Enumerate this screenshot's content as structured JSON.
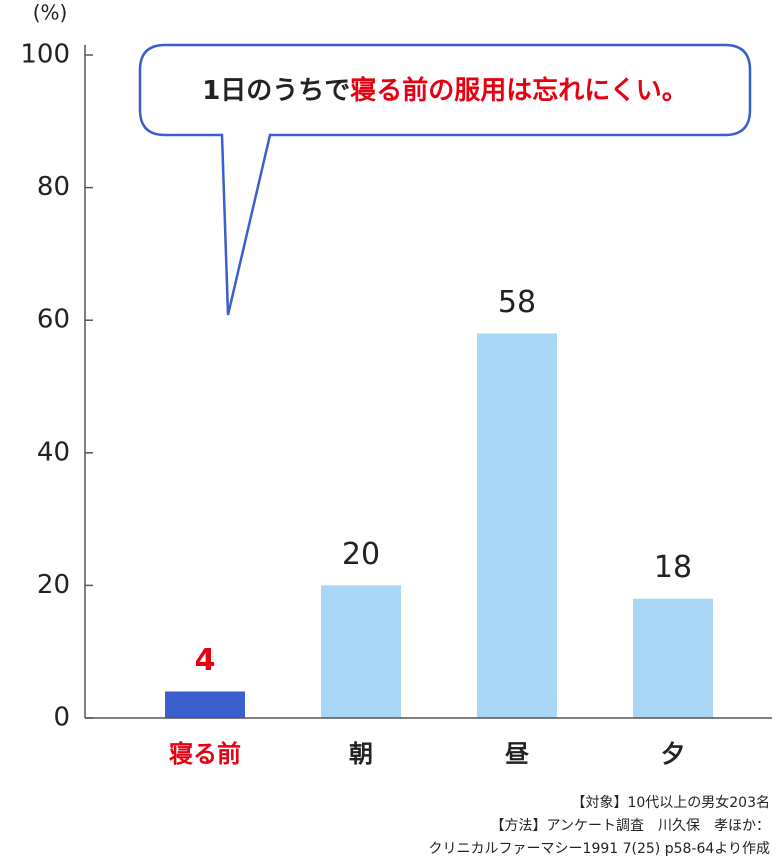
{
  "chart_data": {
    "type": "bar",
    "y_label": "(%)",
    "categories": [
      "寝る前",
      "朝",
      "昼",
      "夕"
    ],
    "values": [
      4,
      20,
      58,
      18
    ],
    "colors": [
      "#3a5fcd",
      "#a8d8f5",
      "#a8d8f5",
      "#a8d8f5"
    ],
    "label_colors": [
      "#e60012",
      "#222222",
      "#222222",
      "#222222"
    ],
    "ylim": [
      0,
      100
    ],
    "yticks": [
      0,
      20,
      40,
      60,
      80,
      100
    ],
    "annotation": [
      "1日のうちで",
      "寝る前の服用は忘れにくい。"
    ],
    "annotation_colors": [
      "#222222",
      "#e60012"
    ],
    "source": [
      "【対象】10代以上の男女203名",
      "【方法】アンケート調査　川久保　孝ほか：",
      "クリニカルファーマシー1991 7(25) p58-64より作成"
    ]
  }
}
